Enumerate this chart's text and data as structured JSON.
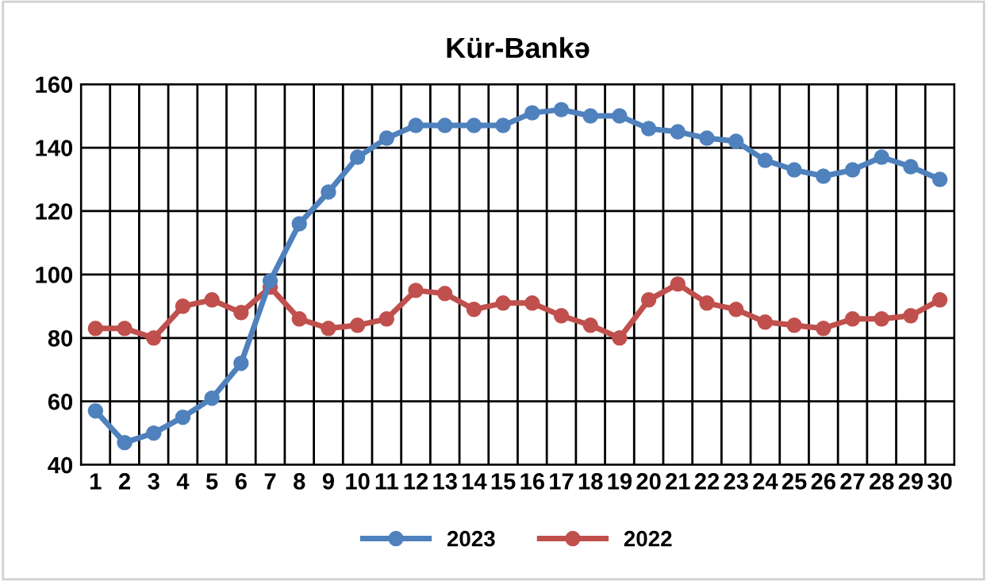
{
  "chart_data": {
    "type": "line",
    "title": "Kür-Bankə",
    "categories": [
      "1",
      "2",
      "3",
      "4",
      "5",
      "6",
      "7",
      "8",
      "9",
      "10",
      "11",
      "12",
      "13",
      "14",
      "15",
      "16",
      "17",
      "18",
      "19",
      "20",
      "21",
      "22",
      "23",
      "24",
      "25",
      "26",
      "27",
      "28",
      "29",
      "30"
    ],
    "series": [
      {
        "name": "2023",
        "color": "#4f81bd",
        "values": [
          57,
          47,
          50,
          55,
          61,
          72,
          98,
          116,
          126,
          137,
          143,
          147,
          147,
          147,
          147,
          151,
          152,
          150,
          150,
          146,
          145,
          143,
          142,
          136,
          133,
          131,
          133,
          137,
          134,
          130
        ]
      },
      {
        "name": "2022",
        "color": "#c0504d",
        "values": [
          83,
          83,
          80,
          90,
          92,
          88,
          96,
          86,
          83,
          84,
          86,
          95,
          94,
          89,
          91,
          91,
          87,
          84,
          80,
          92,
          97,
          91,
          89,
          85,
          84,
          83,
          86,
          86,
          87,
          92
        ]
      }
    ],
    "ylim": [
      40,
      160
    ],
    "yticks": [
      40,
      60,
      80,
      100,
      120,
      140,
      160
    ],
    "grid": true,
    "legend": "bottom",
    "marker": "circle",
    "line_style": "solid"
  }
}
